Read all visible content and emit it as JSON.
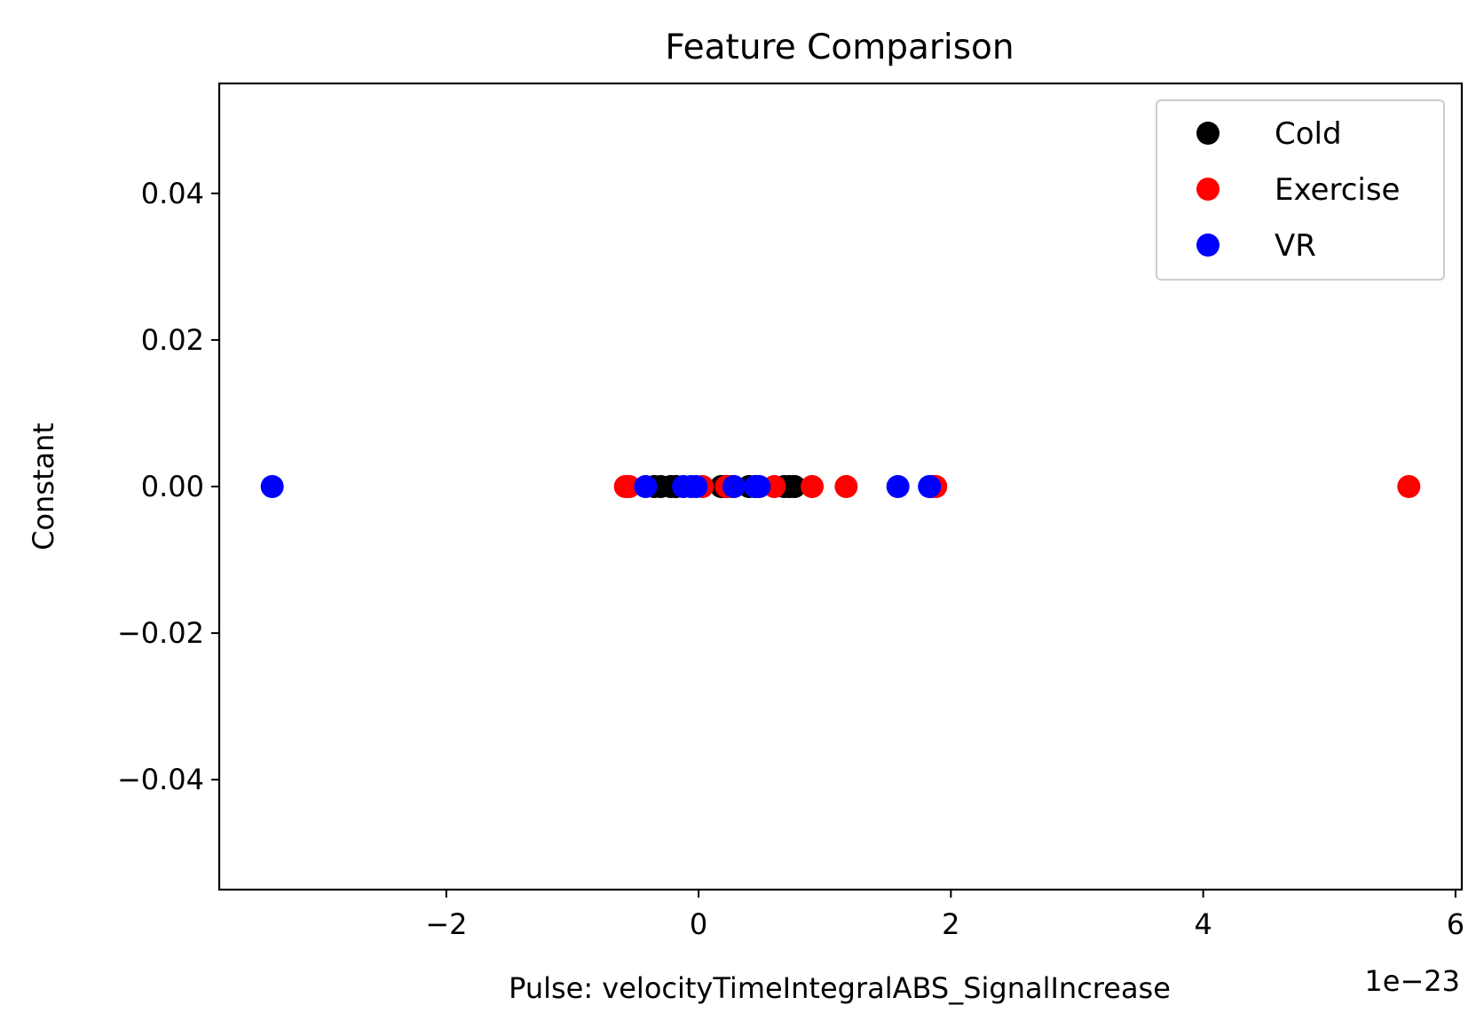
{
  "chart_data": {
    "type": "scatter",
    "title": "Feature Comparison",
    "xlabel": "Pulse: velocityTimeIntegralABS_SignalIncrease",
    "ylabel": "Constant",
    "x_offset_label": "1e−23",
    "xlim": [
      -3.8,
      6.05
    ],
    "ylim": [
      -0.055,
      0.055
    ],
    "xticks": [
      -2,
      0,
      2,
      4,
      6
    ],
    "xtick_labels": [
      "−2",
      "0",
      "2",
      "4",
      "6"
    ],
    "yticks": [
      0.04,
      0.02,
      0.0,
      -0.02,
      -0.04
    ],
    "ytick_labels": [
      "0.04",
      "0.02",
      "0.00",
      "−0.02",
      "−0.04"
    ],
    "grid": false,
    "legend_position": "top-right",
    "series": [
      {
        "name": "Cold",
        "color": "#000000",
        "x": [
          -0.35,
          -0.3,
          -0.22,
          -0.18,
          0.18,
          0.22,
          0.4,
          0.45,
          0.68,
          0.72,
          0.76
        ],
        "y": [
          0,
          0,
          0,
          0,
          0,
          0,
          0,
          0,
          0,
          0,
          0
        ]
      },
      {
        "name": "Exercise",
        "color": "#ff0000",
        "x": [
          -0.58,
          -0.55,
          0.03,
          0.22,
          0.26,
          0.6,
          0.9,
          1.17,
          1.85,
          1.88,
          5.63
        ],
        "y": [
          0,
          0,
          0,
          0,
          0,
          0,
          0,
          0,
          0,
          0,
          0
        ]
      },
      {
        "name": "VR",
        "color": "#0000ff",
        "x": [
          -3.38,
          -0.42,
          -0.12,
          -0.06,
          -0.02,
          0.28,
          0.45,
          0.48,
          1.58,
          1.83
        ],
        "y": [
          0,
          0,
          0,
          0,
          0,
          0,
          0,
          0,
          0,
          0
        ]
      }
    ]
  }
}
